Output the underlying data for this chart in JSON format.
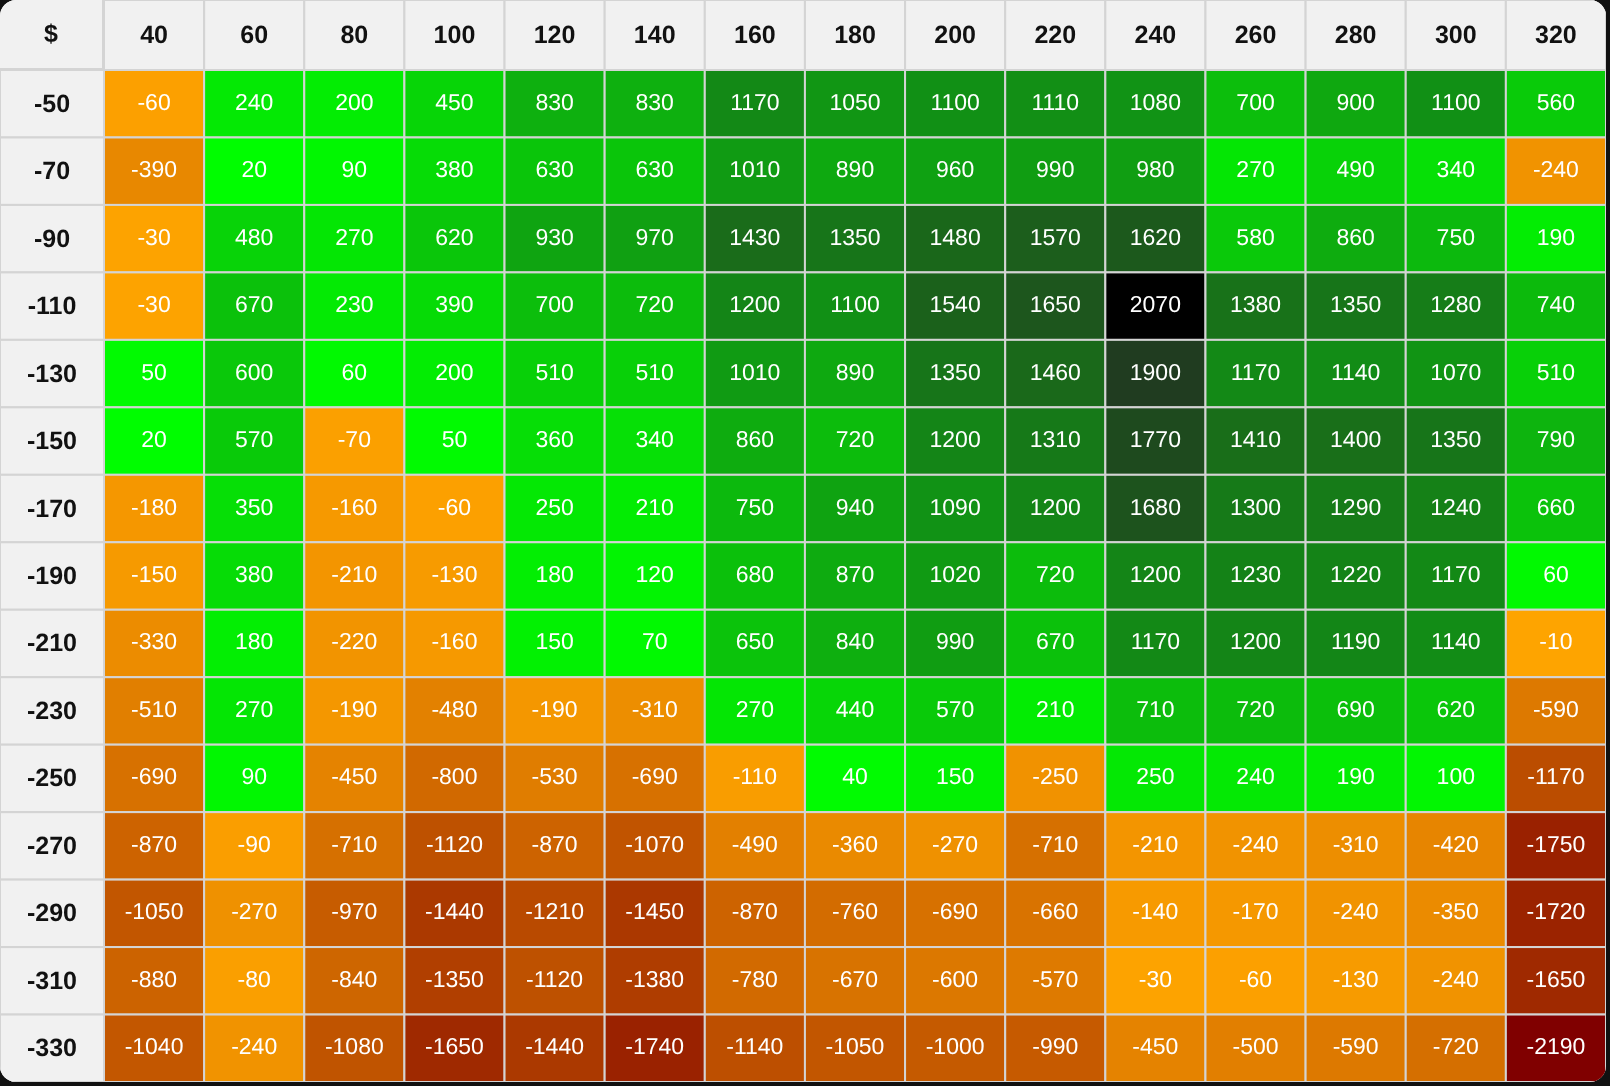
{
  "chart_data": {
    "type": "heatmap",
    "annotations": [
      "$"
    ],
    "categories": [
      "40",
      "60",
      "80",
      "100",
      "120",
      "140",
      "160",
      "180",
      "200",
      "220",
      "240",
      "260",
      "280",
      "300",
      "320"
    ],
    "y_categories": [
      "-50",
      "-70",
      "-90",
      "-110",
      "-130",
      "-150",
      "-170",
      "-190",
      "-210",
      "-230",
      "-250",
      "-270",
      "-290",
      "-310",
      "-330"
    ],
    "cells": [
      [
        -60,
        240,
        200,
        450,
        830,
        830,
        1170,
        1050,
        1100,
        1110,
        1080,
        700,
        900,
        1100,
        560
      ],
      [
        -390,
        20,
        90,
        380,
        630,
        630,
        1010,
        890,
        960,
        990,
        980,
        270,
        490,
        340,
        -240
      ],
      [
        -30,
        480,
        270,
        620,
        930,
        970,
        1430,
        1350,
        1480,
        1570,
        1620,
        580,
        860,
        750,
        190
      ],
      [
        -30,
        670,
        230,
        390,
        700,
        720,
        1200,
        1100,
        1540,
        1650,
        2070,
        1380,
        1350,
        1280,
        740
      ],
      [
        50,
        600,
        60,
        200,
        510,
        510,
        1010,
        890,
        1350,
        1460,
        1900,
        1170,
        1140,
        1070,
        510
      ],
      [
        20,
        570,
        -70,
        50,
        360,
        340,
        860,
        720,
        1200,
        1310,
        1770,
        1410,
        1400,
        1350,
        790
      ],
      [
        -180,
        350,
        -160,
        -60,
        250,
        210,
        750,
        940,
        1090,
        1200,
        1680,
        1300,
        1290,
        1240,
        660
      ],
      [
        -150,
        380,
        -210,
        -130,
        180,
        120,
        680,
        870,
        1020,
        720,
        1200,
        1230,
        1220,
        1170,
        60
      ],
      [
        -330,
        180,
        -220,
        -160,
        150,
        70,
        650,
        840,
        990,
        670,
        1170,
        1200,
        1190,
        1140,
        -10
      ],
      [
        -510,
        270,
        -190,
        -480,
        -190,
        -310,
        270,
        440,
        570,
        210,
        710,
        720,
        690,
        620,
        -590
      ],
      [
        -690,
        90,
        -450,
        -800,
        -530,
        -690,
        -110,
        40,
        150,
        -250,
        250,
        240,
        190,
        100,
        -1170
      ],
      [
        -870,
        -90,
        -710,
        -1120,
        -870,
        -1070,
        -490,
        -360,
        -270,
        -710,
        -210,
        -240,
        -310,
        -420,
        -1750
      ],
      [
        -1050,
        -270,
        -970,
        -1440,
        -1210,
        -1450,
        -870,
        -760,
        -690,
        -660,
        -140,
        -170,
        -240,
        -350,
        -1720
      ],
      [
        -880,
        -80,
        -840,
        -1350,
        -1120,
        -1380,
        -780,
        -670,
        -600,
        -570,
        -30,
        -60,
        -130,
        -240,
        -1650
      ],
      [
        -1040,
        -240,
        -1080,
        -1650,
        -1440,
        -1740,
        -1140,
        -1050,
        -1000,
        -990,
        -450,
        -500,
        -590,
        -720,
        -2190
      ]
    ],
    "data_labels": true
  }
}
